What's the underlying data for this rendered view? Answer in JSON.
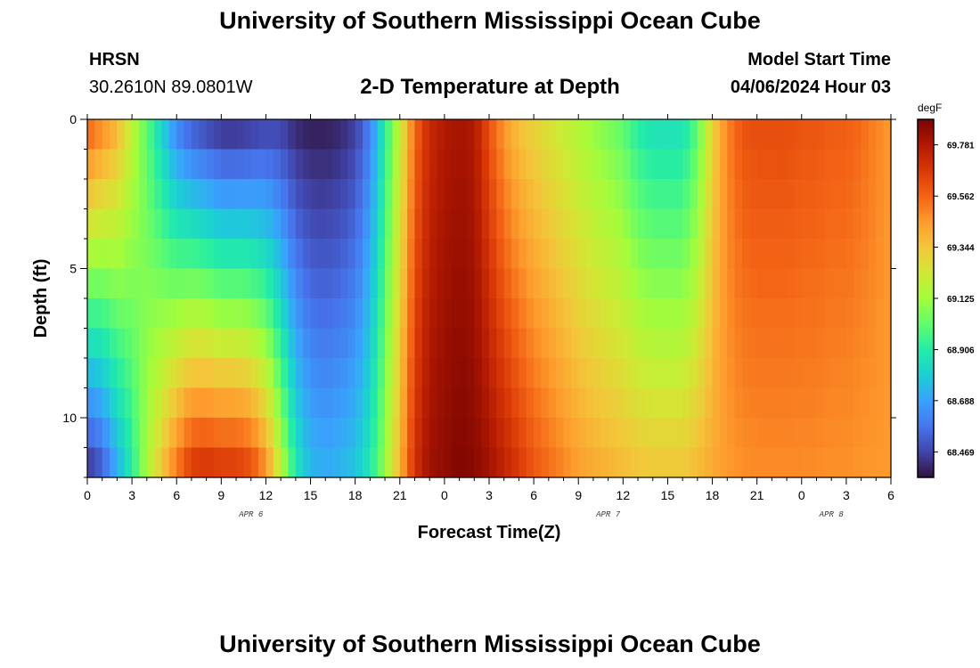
{
  "header": {
    "title": "University of Southern Mississippi Ocean Cube",
    "station_code": "HRSN",
    "station_coords": "30.2610N  89.0801W",
    "subtitle": "2-D Temperature at Depth",
    "model_start_label": "Model Start Time",
    "model_start_value": "04/06/2024 Hour 03"
  },
  "footer": {
    "title": "University of Southern Mississippi Ocean Cube"
  },
  "chart_data": {
    "type": "heatmap",
    "title": "2-D Temperature at Depth",
    "xlabel": "Forecast Time(Z)",
    "ylabel": "Depth (ft)",
    "x_range_hours": [
      0,
      54
    ],
    "y_range_ft": [
      0,
      12
    ],
    "y_inverted": true,
    "x_ticks": [
      "0",
      "3",
      "6",
      "9",
      "12",
      "15",
      "18",
      "21",
      "0",
      "3",
      "6",
      "9",
      "12",
      "15",
      "18",
      "21",
      "0",
      "3",
      "6"
    ],
    "x_tick_hours": [
      0,
      3,
      6,
      9,
      12,
      15,
      18,
      21,
      24,
      27,
      30,
      33,
      36,
      39,
      42,
      45,
      48,
      51,
      54
    ],
    "y_ticks": [
      "0",
      "5",
      "10"
    ],
    "y_tick_values": [
      0,
      5,
      10
    ],
    "date_labels": [
      {
        "text": "APR 6",
        "hour": 11
      },
      {
        "text": "APR 7",
        "hour": 35
      },
      {
        "text": "APR 8",
        "hour": 50
      }
    ],
    "colorbar": {
      "unit": "degF",
      "min": 68.36,
      "max": 69.89,
      "labels": [
        "69.781",
        "69.562",
        "69.344",
        "69.125",
        "68.906",
        "68.688",
        "68.469"
      ],
      "label_values": [
        69.781,
        69.562,
        69.344,
        69.125,
        68.906,
        68.688,
        68.469
      ],
      "colormap": [
        "#30123b",
        "#4145ab",
        "#4675ed",
        "#39a2fc",
        "#1bcfd4",
        "#24eca6",
        "#61fc6c",
        "#a4fc3b",
        "#d1e834",
        "#f3c63a",
        "#fe9b2d",
        "#f36315",
        "#d93806",
        "#b11901",
        "#7a0402"
      ]
    },
    "depth_levels_ft": [
      0,
      1,
      2,
      3,
      4,
      5,
      6,
      7,
      8,
      9,
      10,
      11,
      12
    ],
    "time_anchor_hours": [
      0,
      1,
      2,
      3,
      4,
      5,
      6,
      7,
      8,
      9,
      10,
      11,
      12,
      13,
      14,
      15,
      16,
      17,
      18,
      19,
      20,
      21,
      22,
      23,
      24,
      25,
      26,
      27,
      28,
      29,
      30,
      31,
      32,
      33,
      34,
      35,
      36,
      37,
      38,
      39,
      40,
      41,
      42,
      43,
      44,
      45,
      46,
      47,
      48,
      49,
      50,
      51,
      52,
      53,
      54
    ],
    "surface_temp_degF": [
      69.6,
      69.5,
      69.4,
      69.2,
      69.0,
      68.8,
      68.6,
      68.5,
      68.45,
      68.4,
      68.4,
      68.42,
      68.45,
      68.45,
      68.4,
      68.38,
      68.38,
      68.4,
      68.45,
      68.6,
      68.9,
      69.2,
      69.55,
      69.72,
      69.78,
      69.8,
      69.78,
      69.6,
      69.45,
      69.35,
      69.3,
      69.25,
      69.2,
      69.15,
      69.1,
      69.05,
      69.0,
      68.9,
      68.85,
      68.85,
      68.85,
      69.0,
      69.3,
      69.5,
      69.6,
      69.62,
      69.62,
      69.62,
      69.6,
      69.6,
      69.58,
      69.58,
      69.55,
      69.5,
      69.45
    ],
    "bottom_temp_degF": [
      68.4,
      68.5,
      68.7,
      68.9,
      69.15,
      69.35,
      69.55,
      69.7,
      69.72,
      69.7,
      69.7,
      69.65,
      69.5,
      69.2,
      68.9,
      68.75,
      68.72,
      68.74,
      68.78,
      68.9,
      69.1,
      69.4,
      69.7,
      69.82,
      69.85,
      69.88,
      69.86,
      69.82,
      69.75,
      69.68,
      69.6,
      69.55,
      69.5,
      69.45,
      69.42,
      69.4,
      69.38,
      69.36,
      69.35,
      69.35,
      69.35,
      69.38,
      69.42,
      69.45,
      69.47,
      69.48,
      69.48,
      69.48,
      69.48,
      69.48,
      69.47,
      69.47,
      69.46,
      69.46,
      69.45
    ]
  }
}
